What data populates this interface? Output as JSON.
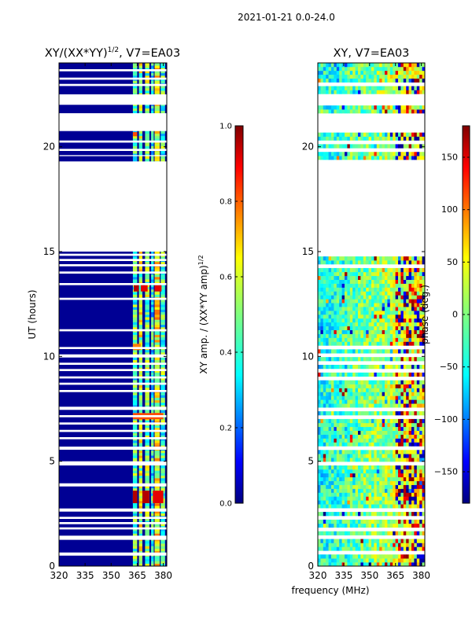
{
  "figure_title": "2021-01-21 0.0-24.0",
  "shared_xlabel": "frequency (MHz)",
  "colors": {
    "blank_row": "#ffffff",
    "cmap": [
      "#00007f",
      "#0000ff",
      "#007fff",
      "#00ffff",
      "#7fff7f",
      "#ffff00",
      "#ff7f00",
      "#ff0000",
      "#7f0000"
    ]
  },
  "chart_data": [
    {
      "type": "heatmap",
      "title_main": "XY/(XX*YY)",
      "title_sup": "1/2",
      "title_tail": ", V7=EA03",
      "xlabel": "",
      "ylabel": "UT (hours)",
      "xlim": [
        320,
        382
      ],
      "ylim": [
        0,
        24
      ],
      "xticks": [
        320,
        335,
        350,
        365,
        380
      ],
      "yticks": [
        0,
        5,
        10,
        15,
        20
      ],
      "colorbar": {
        "label_main": "XY amp. / (XX*YY amp)",
        "label_sup": "1/2",
        "range": [
          0.0,
          1.0
        ],
        "ticks": [
          0.0,
          0.2,
          0.4,
          0.6,
          0.8,
          1.0
        ],
        "tick_labels": [
          "0.0",
          "0.2",
          "0.4",
          "0.6",
          "0.8",
          "1.0"
        ]
      },
      "blank_hours": [
        [
          0.5,
          0.65
        ],
        [
          1.25,
          1.45
        ],
        [
          1.75,
          1.85
        ],
        [
          2.0,
          2.1
        ],
        [
          2.25,
          2.35
        ],
        [
          2.6,
          2.75
        ],
        [
          3.8,
          3.95
        ],
        [
          4.8,
          5.0
        ],
        [
          5.55,
          5.7
        ],
        [
          6.05,
          6.15
        ],
        [
          6.4,
          6.5
        ],
        [
          6.75,
          6.85
        ],
        [
          7.1,
          7.2
        ],
        [
          7.45,
          7.6
        ],
        [
          8.3,
          8.4
        ],
        [
          8.65,
          8.75
        ],
        [
          8.95,
          9.05
        ],
        [
          9.3,
          9.4
        ],
        [
          9.6,
          9.7
        ],
        [
          9.95,
          10.1
        ],
        [
          10.35,
          10.45
        ],
        [
          11.2,
          11.3
        ],
        [
          12.7,
          12.8
        ],
        [
          13.4,
          13.5
        ],
        [
          13.95,
          14.05
        ],
        [
          14.3,
          14.4
        ],
        [
          14.55,
          14.65
        ],
        [
          14.8,
          14.9
        ],
        [
          15.0,
          19.3
        ],
        [
          19.55,
          19.6
        ],
        [
          19.8,
          19.9
        ],
        [
          20.2,
          20.3
        ],
        [
          20.75,
          21.6
        ],
        [
          22.0,
          22.5
        ],
        [
          22.9,
          23.0
        ],
        [
          23.2,
          23.3
        ],
        [
          23.6,
          23.7
        ]
      ],
      "bands": [
        {
          "mhz": [
            362.5,
            365
          ],
          "level": 0.45
        },
        {
          "mhz": [
            366,
            368
          ],
          "level": 0.55
        },
        {
          "mhz": [
            369.5,
            372
          ],
          "level": 0.5
        },
        {
          "mhz": [
            373,
            374.5
          ],
          "level": 0.4
        },
        {
          "mhz": [
            375,
            378
          ],
          "level": 0.6
        },
        {
          "mhz": [
            378.5,
            381
          ],
          "level": 0.45
        }
      ],
      "hot_spots": [
        {
          "mhz": [
            363,
            366
          ],
          "ut": [
            13.1,
            13.4
          ],
          "level": 0.95
        },
        {
          "mhz": [
            367,
            371
          ],
          "ut": [
            13.1,
            13.4
          ],
          "level": 0.9
        },
        {
          "mhz": [
            375,
            379
          ],
          "ut": [
            13.1,
            13.4
          ],
          "level": 0.9
        },
        {
          "mhz": [
            362.5,
            365
          ],
          "ut": [
            3.0,
            3.6
          ],
          "level": 0.95
        },
        {
          "mhz": [
            368,
            372
          ],
          "ut": [
            3.0,
            3.6
          ],
          "level": 0.95
        },
        {
          "mhz": [
            374,
            380
          ],
          "ut": [
            3.0,
            3.6
          ],
          "level": 0.9
        },
        {
          "mhz": [
            362.5,
            380
          ],
          "ut": [
            7.0,
            7.3
          ],
          "level": 0.8
        },
        {
          "mhz": [
            362.5,
            367
          ],
          "ut": [
            10.3,
            10.6
          ],
          "level": 0.75
        },
        {
          "mhz": [
            362.5,
            365
          ],
          "ut": [
            20.5,
            20.7
          ],
          "level": 0.8
        }
      ]
    },
    {
      "type": "heatmap",
      "title_main": "XY, V7=EA03",
      "title_sup": "",
      "title_tail": "",
      "xlabel": "",
      "ylabel": "",
      "xlim": [
        320,
        382
      ],
      "ylim": [
        0,
        24
      ],
      "xticks": [
        320,
        335,
        350,
        365,
        380
      ],
      "yticks": [
        0,
        5,
        10,
        15,
        20
      ],
      "colorbar": {
        "label_main": "phase (deg.)",
        "label_sup": "",
        "range": [
          -180,
          180
        ],
        "ticks": [
          -150,
          -100,
          -50,
          0,
          50,
          100,
          150
        ],
        "tick_labels": [
          "−150",
          "−100",
          "−50",
          "0",
          "50",
          "100",
          "150"
        ]
      },
      "blank_hours": [
        [
          0.5,
          0.65
        ],
        [
          1.25,
          1.45
        ],
        [
          1.75,
          1.85
        ],
        [
          2.0,
          2.1
        ],
        [
          2.25,
          2.35
        ],
        [
          2.6,
          2.75
        ],
        [
          3.8,
          3.95
        ],
        [
          4.8,
          5.0
        ],
        [
          5.55,
          5.7
        ],
        [
          6.05,
          6.15
        ],
        [
          6.4,
          6.5
        ],
        [
          6.75,
          6.85
        ],
        [
          7.1,
          7.2
        ],
        [
          7.45,
          7.6
        ],
        [
          8.3,
          8.4
        ],
        [
          8.65,
          8.75
        ],
        [
          8.95,
          9.05
        ],
        [
          9.3,
          9.4
        ],
        [
          9.6,
          9.7
        ],
        [
          9.95,
          10.1
        ],
        [
          10.35,
          10.45
        ],
        [
          11.2,
          11.3
        ],
        [
          12.7,
          12.8
        ],
        [
          13.4,
          13.5
        ],
        [
          13.95,
          14.05
        ],
        [
          14.3,
          14.4
        ],
        [
          14.55,
          14.65
        ],
        [
          14.8,
          14.9
        ],
        [
          15.0,
          19.3
        ],
        [
          19.55,
          19.6
        ],
        [
          19.8,
          19.9
        ],
        [
          20.2,
          20.3
        ],
        [
          20.75,
          21.6
        ],
        [
          22.0,
          22.5
        ],
        [
          22.9,
          23.0
        ],
        [
          23.2,
          23.3
        ],
        [
          23.6,
          23.7
        ]
      ],
      "phase_mean_left": -40,
      "phase_mean_right": 40
    }
  ]
}
